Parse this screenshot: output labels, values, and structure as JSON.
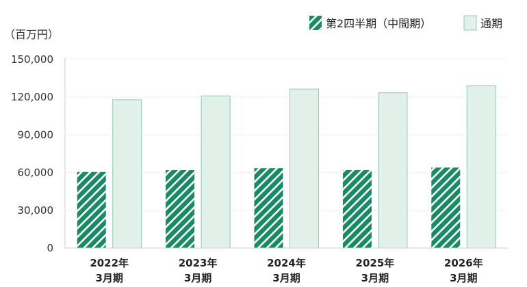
{
  "chart_data": {
    "type": "bar",
    "unit_label": "（百万円）",
    "categories": [
      {
        "year": "2022年",
        "period": "3月期"
      },
      {
        "year": "2023年",
        "period": "3月期"
      },
      {
        "year": "2024年",
        "period": "3月期"
      },
      {
        "year": "2025年",
        "period": "3月期"
      },
      {
        "year": "2026年",
        "period": "3月期"
      }
    ],
    "series": [
      {
        "name": "第2四半期（中間期）",
        "values": [
          60500,
          62000,
          63500,
          62000,
          64000
        ],
        "color": "#1a8a66",
        "pattern": "diagonal-stripes"
      },
      {
        "name": "通期",
        "values": [
          118000,
          121000,
          126500,
          123500,
          129000
        ],
        "color": "#e3f1eb",
        "border": "#8fc9b0"
      }
    ],
    "ylim": [
      0,
      150000
    ],
    "yticks": [
      "0",
      "30,000",
      "60,000",
      "90,000",
      "120,000",
      "150,000"
    ],
    "ytick_values": [
      0,
      30000,
      60000,
      90000,
      120000,
      150000
    ],
    "grid": true,
    "legend_position": "top-right"
  }
}
